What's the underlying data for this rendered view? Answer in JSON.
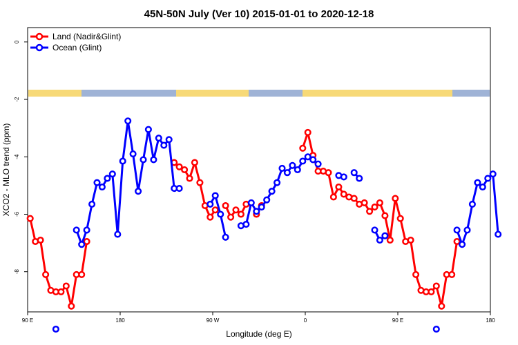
{
  "chart_data": {
    "type": "line",
    "title": "45N-50N July (Ver 10)   2015-01-01 to 2020-12-18",
    "xlabel": "Longitude (deg E)",
    "ylabel": "XCO2 - MLO trend (ppm)",
    "x_tick_positions": [
      90,
      180,
      270,
      360,
      450,
      540
    ],
    "x_tick_labels": [
      "90 E",
      "180",
      "90 W",
      "0",
      "90 E",
      "180"
    ],
    "xlim": [
      90,
      540
    ],
    "y_ticks": [
      0,
      -2,
      -4,
      -6,
      -8
    ],
    "ylim": [
      -9.4,
      0.5
    ],
    "legend": {
      "position": "top-left",
      "entries": [
        {
          "label": "Land (Nadir&Glint)",
          "color": "#ff0000"
        },
        {
          "label": "Ocean (Glint)",
          "color": "#0000ff"
        }
      ]
    },
    "land_mask_colors": {
      "land": "#f7d977",
      "ocean": "#9fb3d6"
    },
    "series": [
      {
        "name": "Land (Nadir&Glint)",
        "color": "#ff0000",
        "segments": [
          [
            [
              92.5,
              -6.15
            ],
            [
              97.5,
              -6.95
            ],
            [
              102.5,
              -6.9
            ],
            [
              107.5,
              -8.1
            ],
            [
              112.5,
              -8.65
            ],
            [
              117.5,
              -8.7
            ],
            [
              122.5,
              -8.7
            ],
            [
              127.5,
              -8.5
            ],
            [
              132.5,
              -9.2
            ],
            [
              137.5,
              -8.1
            ],
            [
              142.5,
              -8.1
            ],
            [
              147.5,
              -6.95
            ]
          ],
          [
            [
              232.5,
              -4.2
            ],
            [
              237.5,
              -4.35
            ],
            [
              242.5,
              -4.45
            ],
            [
              247.5,
              -4.75
            ],
            [
              252.5,
              -4.2
            ],
            [
              257.5,
              -4.9
            ],
            [
              262.5,
              -5.7
            ],
            [
              267.5,
              -6.1
            ],
            [
              272.5,
              -5.85
            ]
          ],
          [
            [
              282.5,
              -5.7
            ],
            [
              287.5,
              -6.1
            ],
            [
              292.5,
              -5.85
            ],
            [
              297.5,
              -6.0
            ],
            [
              302.5,
              -5.65
            ]
          ],
          [
            [
              312.5,
              -6.0
            ],
            [
              317.5,
              -5.7
            ]
          ],
          [
            [
              357.5,
              -3.7
            ],
            [
              362.5,
              -3.15
            ],
            [
              367.5,
              -3.95
            ],
            [
              372.5,
              -4.5
            ],
            [
              377.5,
              -4.5
            ],
            [
              382.5,
              -4.55
            ],
            [
              387.5,
              -5.4
            ],
            [
              392.5,
              -5.05
            ],
            [
              397.5,
              -5.3
            ],
            [
              402.5,
              -5.4
            ],
            [
              407.5,
              -5.45
            ],
            [
              412.5,
              -5.65
            ],
            [
              417.5,
              -5.6
            ],
            [
              422.5,
              -5.9
            ],
            [
              427.5,
              -5.75
            ],
            [
              432.5,
              -5.6
            ],
            [
              437.5,
              -6.05
            ],
            [
              442.5,
              -6.9
            ],
            [
              447.5,
              -5.45
            ],
            [
              452.5,
              -6.15
            ],
            [
              457.5,
              -6.95
            ],
            [
              462.5,
              -6.9
            ],
            [
              467.5,
              -8.1
            ],
            [
              472.5,
              -8.65
            ],
            [
              477.5,
              -8.7
            ],
            [
              482.5,
              -8.7
            ],
            [
              487.5,
              -8.5
            ],
            [
              492.5,
              -9.2
            ],
            [
              497.5,
              -8.1
            ],
            [
              502.5,
              -8.1
            ],
            [
              507.5,
              -6.95
            ]
          ]
        ]
      },
      {
        "name": "Ocean (Glint)",
        "color": "#0000ff",
        "segments": [
          [
            [
              117.5,
              -10.0
            ]
          ],
          [
            [
              137.5,
              -6.55
            ],
            [
              142.5,
              -7.05
            ],
            [
              147.5,
              -6.55
            ],
            [
              152.5,
              -5.65
            ],
            [
              157.5,
              -4.9
            ],
            [
              162.5,
              -5.05
            ],
            [
              167.5,
              -4.75
            ],
            [
              172.5,
              -4.6
            ],
            [
              177.5,
              -6.7
            ],
            [
              182.5,
              -4.15
            ],
            [
              187.5,
              -2.75
            ],
            [
              192.5,
              -3.9
            ],
            [
              197.5,
              -5.2
            ],
            [
              202.5,
              -4.1
            ],
            [
              207.5,
              -3.05
            ],
            [
              212.5,
              -4.1
            ],
            [
              217.5,
              -3.35
            ],
            [
              222.5,
              -3.6
            ],
            [
              227.5,
              -3.4
            ],
            [
              232.5,
              -5.1
            ],
            [
              237.5,
              -5.1
            ]
          ],
          [
            [
              267.5,
              -5.65
            ],
            [
              272.5,
              -5.35
            ],
            [
              277.5,
              -6.0
            ],
            [
              282.5,
              -6.8
            ]
          ],
          [
            [
              297.5,
              -6.4
            ],
            [
              302.5,
              -6.35
            ],
            [
              307.5,
              -5.6
            ],
            [
              312.5,
              -5.9
            ],
            [
              317.5,
              -5.75
            ],
            [
              322.5,
              -5.5
            ],
            [
              327.5,
              -5.2
            ],
            [
              332.5,
              -4.9
            ],
            [
              337.5,
              -4.4
            ],
            [
              342.5,
              -4.55
            ],
            [
              347.5,
              -4.3
            ],
            [
              352.5,
              -4.45
            ],
            [
              357.5,
              -4.15
            ],
            [
              362.5,
              -4.0
            ],
            [
              367.5,
              -4.1
            ]
          ],
          [
            [
              372.5,
              -4.25
            ]
          ],
          [
            [
              392.5,
              -4.65
            ],
            [
              397.5,
              -4.7
            ]
          ],
          [
            [
              407.5,
              -4.55
            ],
            [
              412.5,
              -4.75
            ]
          ],
          [
            [
              427.5,
              -6.55
            ],
            [
              432.5,
              -6.9
            ],
            [
              437.5,
              -6.75
            ]
          ],
          [
            [
              487.5,
              -10.0
            ]
          ],
          [
            [
              507.5,
              -6.55
            ],
            [
              512.5,
              -7.05
            ],
            [
              517.5,
              -6.55
            ],
            [
              522.5,
              -5.65
            ],
            [
              527.5,
              -4.9
            ],
            [
              532.5,
              -5.05
            ],
            [
              537.5,
              -4.75
            ],
            [
              542.5,
              -4.6
            ],
            [
              547.5,
              -6.7
            ]
          ]
        ]
      }
    ]
  }
}
